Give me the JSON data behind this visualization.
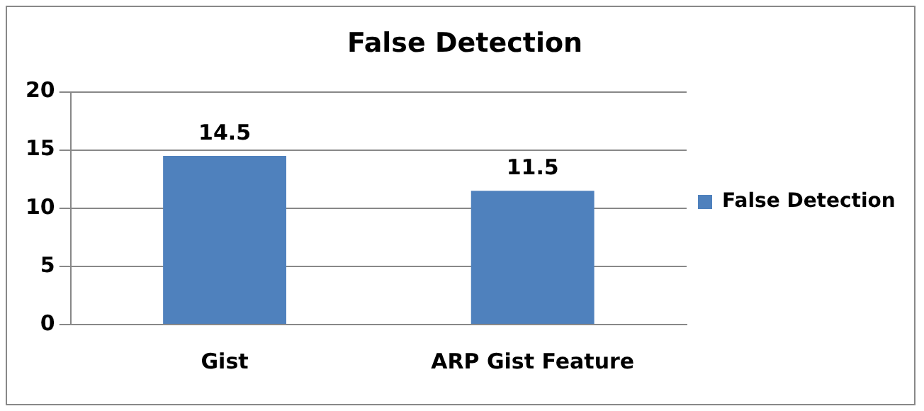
{
  "chart_data": {
    "type": "bar",
    "title": "False Detection",
    "categories": [
      "Gist",
      "ARP Gist Feature"
    ],
    "series": [
      {
        "name": "False Detection",
        "color": "#4f81bd",
        "values": [
          14.5,
          11.5
        ]
      }
    ],
    "ylim": [
      0,
      20
    ],
    "yticks": [
      0,
      5,
      10,
      15,
      20
    ],
    "grid": "y",
    "legend": "right",
    "data_labels": true
  }
}
